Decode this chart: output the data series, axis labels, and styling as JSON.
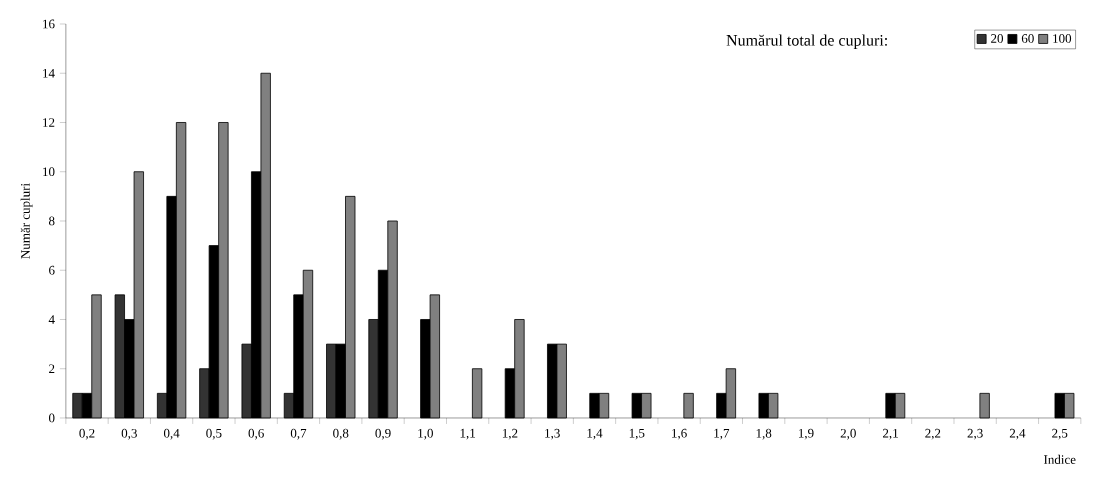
{
  "chart_data": {
    "type": "bar",
    "xlabel": "Indice",
    "ylabel": "Număr cupluri",
    "legend_title": "Numărul total de cupluri:",
    "categories": [
      "0,2",
      "0,3",
      "0,4",
      "0,5",
      "0,6",
      "0,7",
      "0,8",
      "0,9",
      "1,0",
      "1,1",
      "1,2",
      "1,3",
      "1,4",
      "1,5",
      "1,6",
      "1,7",
      "1,8",
      "1,9",
      "2,0",
      "2,1",
      "2,2",
      "2,3",
      "2,4",
      "2,5"
    ],
    "series": [
      {
        "name": "20",
        "color": "#333333",
        "values": [
          1,
          5,
          1,
          2,
          3,
          1,
          3,
          4,
          null,
          null,
          null,
          null,
          null,
          null,
          null,
          null,
          null,
          null,
          null,
          null,
          null,
          null,
          null,
          null
        ]
      },
      {
        "name": "60",
        "color": "#000000",
        "values": [
          1,
          4,
          9,
          7,
          10,
          5,
          3,
          6,
          4,
          null,
          2,
          3,
          1,
          1,
          null,
          1,
          1,
          null,
          null,
          1,
          null,
          null,
          null,
          1
        ]
      },
      {
        "name": "100",
        "color": "#808080",
        "values": [
          5,
          10,
          12,
          12,
          14,
          6,
          9,
          8,
          5,
          2,
          4,
          3,
          1,
          1,
          1,
          2,
          1,
          null,
          null,
          1,
          null,
          1,
          null,
          1
        ]
      }
    ],
    "ylim": [
      0,
      16
    ],
    "yticks": [
      0,
      2,
      4,
      6,
      8,
      10,
      12,
      14,
      16
    ],
    "grid": false,
    "legend": "top right"
  }
}
